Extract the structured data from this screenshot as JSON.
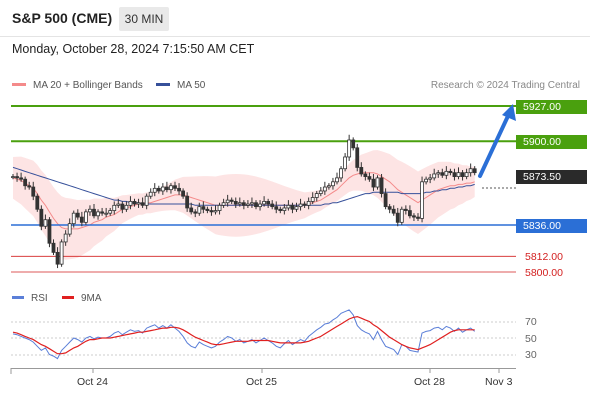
{
  "header": {
    "title": "S&P 500 (CME)",
    "timeframe": "30 MIN"
  },
  "datetime": "Monday, October 28, 2024 7:15:50 AM CET",
  "legend": {
    "bollinger": "MA 20 + Bollinger Bands",
    "ma50": "MA 50",
    "credit": "Research © 2024 Trading Central",
    "rsi": "RSI",
    "rsi_ma": "9MA"
  },
  "colors": {
    "green": "#4aa00e",
    "blue": "#2b6fd6",
    "red": "#d32020",
    "bollinger": "#f48a8a",
    "ma50": "#36509a",
    "band_fill": "#fde4e4",
    "rsi": "#5b7fd8",
    "rsi_ma": "#e02020"
  },
  "levels": [
    {
      "value": "5927.00",
      "style": "green"
    },
    {
      "value": "5900.00",
      "style": "green"
    },
    {
      "value": "5873.50",
      "style": "dark"
    },
    {
      "value": "5836.00",
      "style": "blue"
    },
    {
      "value": "5812.00",
      "style": "red"
    },
    {
      "value": "5800.00",
      "style": "red"
    }
  ],
  "rsi_ticks": [
    "70",
    "50",
    "30"
  ],
  "x_ticks": [
    "Oct 24",
    "Oct 25",
    "Oct 28",
    "Nov 3"
  ],
  "icons": {
    "forecast_arrow": "arrow-up-right-icon"
  },
  "chart_data": {
    "type": "candlestick",
    "price_levels": [
      5927.0,
      5900.0,
      5873.5,
      5836.0,
      5812.0,
      5800.0
    ],
    "x_ticks": [
      "Oct 24",
      "Oct 25",
      "Oct 28",
      "Nov 3"
    ],
    "close": [
      5873,
      5872,
      5871,
      5866,
      5865,
      5858,
      5848,
      5835,
      5840,
      5822,
      5815,
      5806,
      5823,
      5829,
      5837,
      5845,
      5842,
      5838,
      5846,
      5848,
      5843,
      5846,
      5845,
      5845,
      5847,
      5851,
      5852,
      5848,
      5851,
      5854,
      5852,
      5853,
      5851,
      5858,
      5861,
      5864,
      5862,
      5865,
      5863,
      5866,
      5864,
      5862,
      5858,
      5849,
      5846,
      5845,
      5850,
      5848,
      5847,
      5846,
      5847,
      5851,
      5853,
      5855,
      5854,
      5852,
      5853,
      5851,
      5852,
      5853,
      5850,
      5852,
      5854,
      5852,
      5850,
      5848,
      5847,
      5849,
      5851,
      5848,
      5850,
      5852,
      5851,
      5854,
      5857,
      5860,
      5862,
      5865,
      5866,
      5869,
      5872,
      5879,
      5888,
      5901,
      5895,
      5880,
      5875,
      5873,
      5871,
      5865,
      5872,
      5860,
      5850,
      5848,
      5845,
      5838,
      5848,
      5847,
      5843,
      5842,
      5841,
      5869,
      5871,
      5872,
      5875,
      5876,
      5874,
      5877,
      5876,
      5873,
      5876,
      5873,
      5876,
      5879,
      5876
    ],
    "ma20_approx": [
      5872,
      5871,
      5870,
      5868,
      5866,
      5864,
      5860,
      5855,
      5851,
      5846,
      5841,
      5837,
      5834,
      5833,
      5833,
      5833,
      5833,
      5834,
      5835,
      5836,
      5838,
      5839,
      5840,
      5842,
      5843,
      5844,
      5846,
      5848,
      5849,
      5850,
      5851,
      5852,
      5852,
      5853,
      5853,
      5854,
      5855,
      5856,
      5857,
      5858,
      5859,
      5859,
      5859,
      5858,
      5857,
      5856,
      5855,
      5854,
      5853,
      5852,
      5851,
      5851,
      5851,
      5851,
      5851,
      5851,
      5851,
      5851,
      5851,
      5851,
      5851,
      5851,
      5851,
      5851,
      5851,
      5851,
      5851,
      5851,
      5851,
      5851,
      5851,
      5851,
      5851,
      5852,
      5853,
      5854,
      5855,
      5857,
      5859,
      5861,
      5863,
      5866,
      5869,
      5872,
      5874,
      5875,
      5876,
      5876,
      5876,
      5876,
      5875,
      5873,
      5871,
      5869,
      5866,
      5863,
      5861,
      5859,
      5857,
      5855,
      5853,
      5855,
      5857,
      5859,
      5861,
      5863,
      5864,
      5865,
      5866,
      5866,
      5867,
      5867,
      5868,
      5868,
      5869
    ],
    "ma50_approx": [
      5880,
      5879,
      5878,
      5877,
      5876,
      5875,
      5874,
      5873,
      5872,
      5871,
      5870,
      5869,
      5868,
      5867,
      5866,
      5865,
      5864,
      5863,
      5862,
      5861,
      5860,
      5859,
      5858,
      5857,
      5856,
      5855,
      5855,
      5854,
      5854,
      5853,
      5853,
      5853,
      5852,
      5852,
      5852,
      5852,
      5852,
      5852,
      5852,
      5852,
      5852,
      5852,
      5852,
      5852,
      5852,
      5851,
      5851,
      5851,
      5851,
      5851,
      5851,
      5851,
      5851,
      5851,
      5851,
      5851,
      5851,
      5851,
      5851,
      5851,
      5851,
      5851,
      5851,
      5851,
      5851,
      5851,
      5851,
      5851,
      5851,
      5851,
      5851,
      5851,
      5851,
      5851,
      5851,
      5851,
      5851,
      5852,
      5852,
      5853,
      5853,
      5854,
      5855,
      5856,
      5857,
      5858,
      5859,
      5860,
      5860,
      5861,
      5861,
      5861,
      5861,
      5861,
      5861,
      5861,
      5860,
      5860,
      5860,
      5860,
      5860,
      5860,
      5861,
      5861,
      5862,
      5862,
      5863,
      5863,
      5864,
      5864,
      5865,
      5865,
      5866,
      5866,
      5867
    ],
    "rsi": [
      55,
      54,
      52,
      50,
      48,
      45,
      40,
      35,
      38,
      30,
      28,
      25,
      35,
      40,
      45,
      50,
      48,
      45,
      50,
      52,
      49,
      51,
      50,
      50,
      52,
      56,
      58,
      54,
      57,
      60,
      58,
      59,
      56,
      62,
      64,
      66,
      62,
      65,
      62,
      66,
      62,
      58,
      52,
      44,
      40,
      38,
      45,
      42,
      40,
      38,
      40,
      45,
      48,
      52,
      50,
      46,
      48,
      44,
      46,
      48,
      44,
      47,
      50,
      47,
      44,
      40,
      38,
      43,
      47,
      42,
      45,
      48,
      46,
      52,
      56,
      60,
      63,
      67,
      68,
      72,
      75,
      80,
      82,
      84,
      78,
      65,
      60,
      57,
      55,
      48,
      58,
      48,
      40,
      38,
      36,
      30,
      42,
      40,
      35,
      34,
      33,
      56,
      58,
      59,
      62,
      63,
      60,
      64,
      62,
      58,
      62,
      57,
      60,
      62,
      58
    ],
    "rsi_ma": [
      57,
      56,
      54,
      52,
      50,
      48,
      45,
      42,
      40,
      37,
      34,
      31,
      31,
      32,
      35,
      38,
      40,
      43,
      46,
      48,
      48,
      49,
      50,
      50,
      50,
      51,
      52,
      53,
      54,
      55,
      56,
      57,
      57,
      58,
      59,
      60,
      61,
      62,
      62,
      63,
      63,
      62,
      60,
      57,
      54,
      51,
      49,
      47,
      45,
      43,
      42,
      42,
      43,
      44,
      45,
      46,
      46,
      46,
      46,
      47,
      47,
      47,
      47,
      47,
      46,
      45,
      44,
      44,
      44,
      44,
      44,
      44,
      45,
      46,
      48,
      50,
      52,
      55,
      58,
      61,
      64,
      67,
      70,
      73,
      75,
      76,
      74,
      72,
      70,
      66,
      63,
      59,
      55,
      51,
      48,
      45,
      42,
      40,
      38,
      37,
      36,
      38,
      40,
      42,
      45,
      48,
      51,
      54,
      57,
      59,
      60,
      60,
      60,
      60,
      60
    ],
    "rsi_ticks": [
      70,
      50,
      30
    ],
    "legend": [
      "MA 20 + Bollinger Bands",
      "MA 50",
      "RSI",
      "9MA"
    ]
  }
}
